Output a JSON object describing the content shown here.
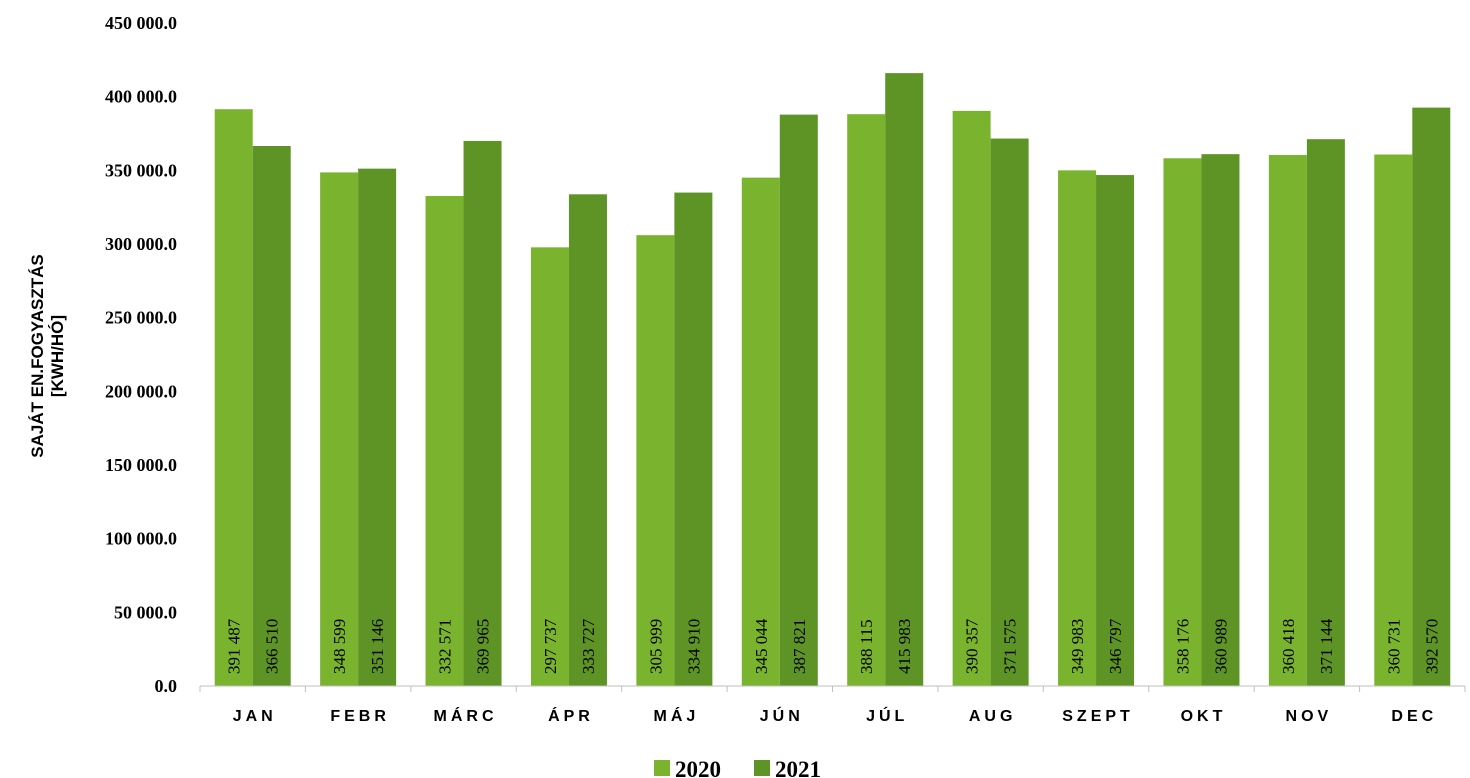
{
  "chart_data": {
    "type": "bar",
    "ylabel_lines": [
      "SAJÁT EN.FOGYASZTÁS",
      "[KWH/HÓ]"
    ],
    "ylim": [
      0,
      450000
    ],
    "ytick_values": [
      0,
      50000,
      100000,
      150000,
      200000,
      250000,
      300000,
      350000,
      400000,
      450000
    ],
    "ytick_labels": [
      "0.0",
      "50 000.0",
      "100 000.0",
      "150 000.0",
      "200 000.0",
      "250 000.0",
      "300 000.0",
      "350 000.0",
      "400 000.0",
      "450 000.0"
    ],
    "grid": false,
    "legend_position": "bottom",
    "categories": [
      "JAN",
      "FEBR",
      "MÁRC",
      "ÁPR",
      "MÁJ",
      "JÚN",
      "JÚL",
      "AUG",
      "SZEPT",
      "OKT",
      "NOV",
      "DEC"
    ],
    "series": [
      {
        "name": "2020",
        "color": "#7ab32e",
        "values": [
          391487,
          348599,
          332571,
          297737,
          305999,
          345044,
          388115,
          390357,
          349983,
          358176,
          360418,
          360731
        ],
        "labels": [
          "391 487",
          "348 599",
          "332 571",
          "297 737",
          "305 999",
          "345 044",
          "388 115",
          "390 357",
          "349 983",
          "358 176",
          "360 418",
          "360 731"
        ]
      },
      {
        "name": "2021",
        "color": "#5e9426",
        "values": [
          366510,
          351146,
          369965,
          333727,
          334910,
          387821,
          415983,
          371575,
          346797,
          360989,
          371144,
          392570
        ],
        "labels": [
          "366 510",
          "351 146",
          "369 965",
          "333 727",
          "334 910",
          "387 821",
          "415 983",
          "371 575",
          "346 797",
          "360 989",
          "371 144",
          "392 570"
        ]
      }
    ]
  }
}
